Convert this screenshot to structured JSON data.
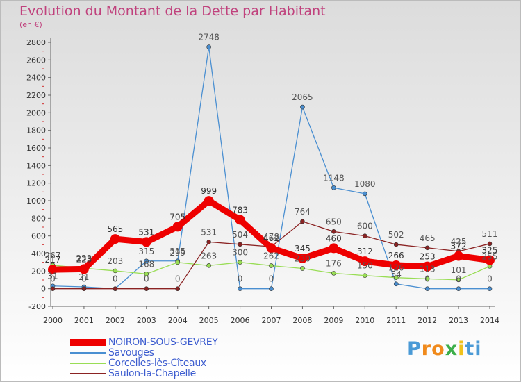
{
  "header": {
    "title": "Evolution du Montant de la Dette par Habitant",
    "unit": "(en €)"
  },
  "brand": {
    "letters": [
      "P",
      "r",
      "o",
      "x",
      "i",
      "t",
      "i"
    ],
    "colors": [
      "#4a9ad6",
      "#f08a1c",
      "#f08a1c",
      "#3cae4a",
      "#f0c21c",
      "#4a9ad6",
      "#4a9ad6"
    ]
  },
  "chart_data": {
    "type": "line",
    "x": [
      2000,
      2001,
      2002,
      2003,
      2004,
      2005,
      2006,
      2007,
      2008,
      2009,
      2010,
      2011,
      2012,
      2013,
      2014
    ],
    "ylim": [
      -200,
      2800
    ],
    "yticks": [
      -200,
      0,
      200,
      400,
      600,
      800,
      1000,
      1200,
      1400,
      1600,
      1800,
      2000,
      2200,
      2400,
      2600,
      2800
    ],
    "grid": false,
    "legend_position": "bottom-left",
    "series": [
      {
        "name": "NOIRON-SOUS-GEVREY",
        "color": "#ee0000",
        "width": 9,
        "label_color": "#333333",
        "values": [
          217,
          223,
          565,
          531,
          705,
          999,
          783,
          462,
          345,
          460,
          312,
          266,
          253,
          372,
          325
        ]
      },
      {
        "name": "Savouges",
        "color": "#4a8fd1",
        "width": 1.3,
        "label_color": "#555555",
        "values": [
          31,
          21,
          0,
          315,
          315,
          2748,
          0,
          0,
          2065,
          1148,
          1080,
          54,
          0,
          0,
          0
        ]
      },
      {
        "name": "Corcelles-lès-Cîteaux",
        "color": "#99dd55",
        "width": 1.3,
        "label_color": "#555555",
        "values": [
          267,
          233,
          203,
          168,
          299,
          263,
          300,
          262,
          230,
          176,
          150,
          126,
          113,
          101,
          255
        ]
      },
      {
        "name": "Saulon-la-Chapelle",
        "color": "#8b2323",
        "width": 1.3,
        "label_color": "#555555",
        "values": [
          0,
          0,
          0,
          0,
          0,
          531,
          504,
          478,
          764,
          650,
          600,
          502,
          465,
          425,
          511
        ]
      }
    ],
    "data_labels": [
      {
        "series": 0,
        "text": [
          "217",
          "223",
          "565",
          "531",
          "705",
          "999",
          "783",
          "462",
          "345",
          "460",
          "312",
          "266",
          "253",
          "372",
          "325"
        ]
      },
      {
        "series": 1,
        "text": [
          "31",
          "21",
          "0",
          "315",
          "315",
          "2748",
          "0",
          "0",
          "2065",
          "1148",
          "1080",
          "54",
          "0",
          "0",
          "0"
        ]
      },
      {
        "series": 2,
        "text": [
          "267",
          "233",
          "203",
          "168",
          "299",
          "263",
          "300",
          "262",
          "230",
          "176",
          "150",
          "126",
          "113",
          "101",
          "255"
        ]
      },
      {
        "series": 3,
        "text": [
          "0",
          "0",
          "0",
          "0",
          "0",
          "531",
          "504",
          "478",
          "764",
          "650",
          "600",
          "502",
          "465",
          "425",
          "511"
        ]
      }
    ]
  }
}
